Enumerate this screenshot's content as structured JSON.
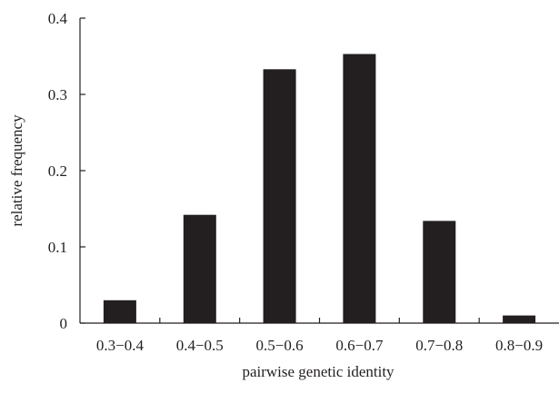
{
  "chart_data": {
    "type": "bar",
    "categories": [
      "0.3−0.4",
      "0.4−0.5",
      "0.5−0.6",
      "0.6−0.7",
      "0.7−0.8",
      "0.8−0.9"
    ],
    "values": [
      0.03,
      0.142,
      0.333,
      0.353,
      0.134,
      0.01
    ],
    "title": "",
    "xlabel": "pairwise genetic identity",
    "ylabel": "relative frequency",
    "ylim": [
      0,
      0.4
    ],
    "yticks": [
      "0",
      "0.1",
      "0.2",
      "0.3",
      "0.4"
    ],
    "ytick_values": [
      0,
      0.1,
      0.2,
      0.3,
      0.4
    ],
    "grid": false,
    "legend": "none",
    "bar_color": "#231f20"
  }
}
